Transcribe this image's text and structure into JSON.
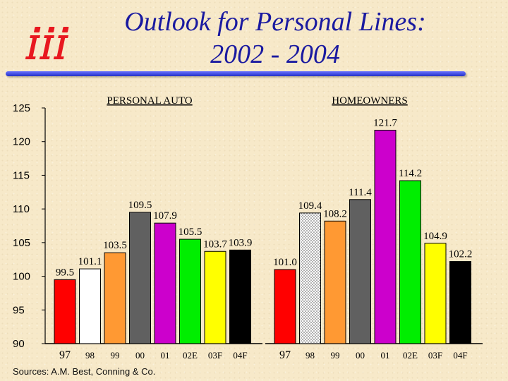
{
  "header": {
    "title_line1": "Outlook for Personal Lines:",
    "title_line2": "2002 - 2004",
    "logo": "iii-logo"
  },
  "source": "Sources:  A.M. Best, Conning & Co.",
  "colors": {
    "title": "#1a1aa0",
    "rule": "#2230c8",
    "logo": "#e8181f"
  },
  "chart_data": {
    "type": "bar",
    "ylim": [
      90,
      125
    ],
    "yticks": [
      90,
      95,
      100,
      105,
      110,
      115,
      120,
      125
    ],
    "grid": false,
    "panels": [
      {
        "title": "PERSONAL AUTO",
        "categories": [
          "97",
          "98",
          "99",
          "00",
          "01",
          "02E",
          "03F",
          "04F"
        ],
        "values": [
          99.5,
          101.1,
          103.5,
          109.5,
          107.9,
          105.5,
          103.7,
          103.9
        ],
        "labels": [
          "99.5",
          "101.1",
          "103.5",
          "109.5",
          "107.9",
          "105.5",
          "103.7",
          "103.9"
        ],
        "colors": [
          "#ff0000",
          "#ffffff",
          "#ff9933",
          "#606060",
          "#cc00cc",
          "#00ee00",
          "#ffff00",
          "#000000"
        ]
      },
      {
        "title": "HOMEOWNERS",
        "categories": [
          "97",
          "98",
          "99",
          "00",
          "01",
          "02E",
          "03F",
          "04F"
        ],
        "values": [
          101.0,
          109.4,
          108.2,
          111.4,
          121.7,
          114.2,
          104.9,
          102.2
        ],
        "labels": [
          "101.0",
          "109.4",
          "108.2",
          "111.4",
          "121.7",
          "114.2",
          "104.9",
          "102.2"
        ],
        "colors": [
          "#ff0000",
          "dotted",
          "#ff9933",
          "#606060",
          "#cc00cc",
          "#00ee00",
          "#ffff00",
          "#000000"
        ]
      }
    ]
  }
}
